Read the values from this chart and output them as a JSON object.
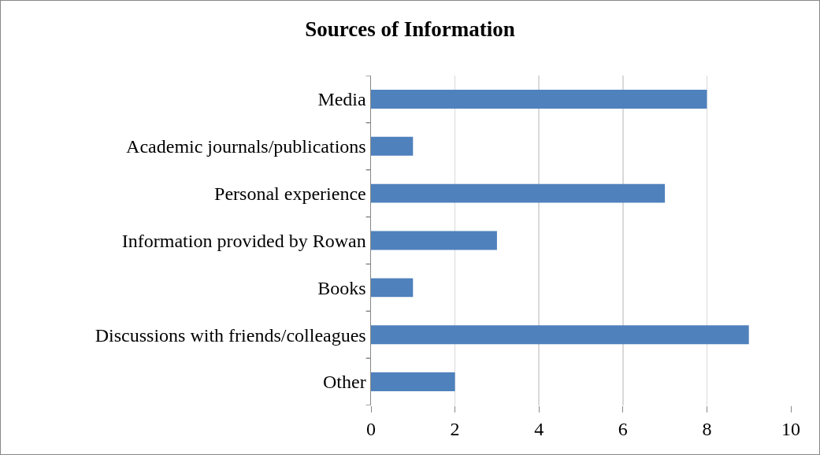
{
  "chart_data": {
    "type": "bar",
    "title": "Sources of Information",
    "orientation": "horizontal",
    "categories": [
      "Media",
      "Academic journals/publications",
      "Personal experience",
      "Information provided by Rowan",
      "Books",
      "Discussions with friends/colleagues",
      "Other"
    ],
    "values": [
      8,
      1,
      7,
      3,
      1,
      9,
      2
    ],
    "color": "#4f81bd",
    "xlim": [
      0,
      10
    ],
    "xticks": [
      0,
      2,
      4,
      6,
      8,
      10
    ],
    "grid": "x"
  }
}
